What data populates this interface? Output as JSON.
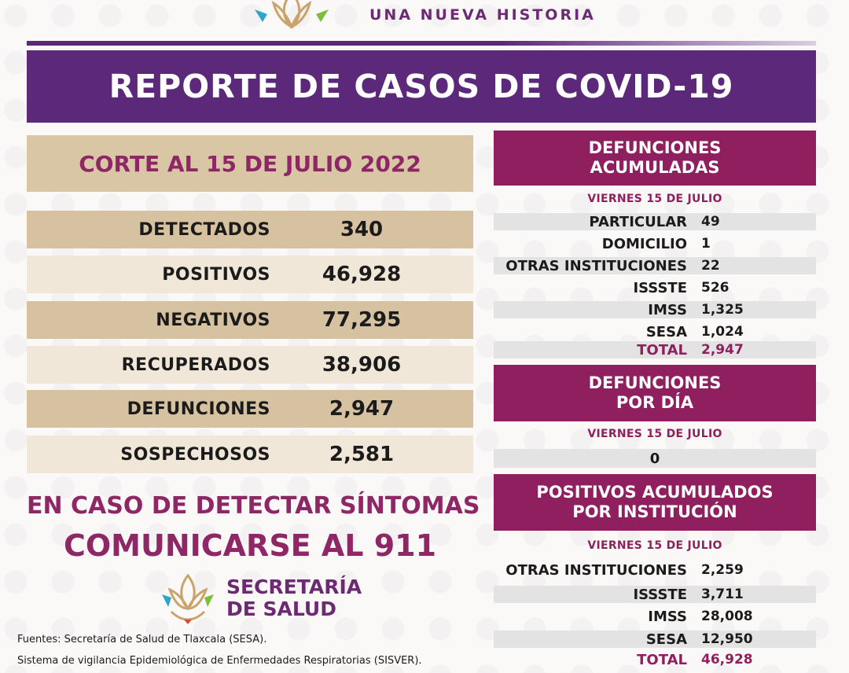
{
  "header": {
    "subtitle": "UNA NUEVA HISTORIA",
    "title": "REPORTE DE CASOS DE COVID-19"
  },
  "summary": {
    "corte": "CORTE AL 15 DE JULIO 2022",
    "rows": [
      {
        "label": "DETECTADOS",
        "value": "340"
      },
      {
        "label": "POSITIVOS",
        "value": "46,928"
      },
      {
        "label": "NEGATIVOS",
        "value": "77,295"
      },
      {
        "label": "RECUPERADOS",
        "value": "38,906"
      },
      {
        "label": "DEFUNCIONES",
        "value": "2,947"
      },
      {
        "label": "SOSPECHOSOS",
        "value": "2,581"
      }
    ]
  },
  "notice": {
    "line1": "EN CASO DE DETECTAR SÍNTOMAS",
    "line2": "COMUNICARSE AL 911"
  },
  "secretaria": {
    "line1": "SECRETARÍA",
    "line2": "DE SALUD"
  },
  "sources": {
    "line1": "Fuentes:  Secretaría de Salud de Tlaxcala (SESA).",
    "line2": "Sistema de vigilancia Epidemiológica de Enfermedades Respiratorias (SISVER)."
  },
  "defunciones_acumuladas": {
    "title1": "DEFUNCIONES",
    "title2": "ACUMULADAS",
    "date": "VIERNES 15 DE JULIO",
    "rows": [
      {
        "label": "PARTICULAR",
        "value": "49"
      },
      {
        "label": "DOMICILIO",
        "value": "1"
      },
      {
        "label": "OTRAS INSTITUCIONES",
        "value": "22"
      },
      {
        "label": "ISSSTE",
        "value": "526"
      },
      {
        "label": "IMSS",
        "value": "1,325"
      },
      {
        "label": "SESA",
        "value": "1,024"
      },
      {
        "label": "TOTAL",
        "value": "2,947"
      }
    ]
  },
  "defunciones_dia": {
    "title1": "DEFUNCIONES",
    "title2": "POR DÍA",
    "date": "VIERNES 15 DE JULIO",
    "value": "0"
  },
  "positivos_institucion": {
    "title1": "POSITIVOS ACUMULADOS",
    "title2": "POR INSTITUCIÓN",
    "date": "VIERNES 15 DE JULIO",
    "rows": [
      {
        "label": "OTRAS INSTITUCIONES",
        "value": "2,259"
      },
      {
        "label": "ISSSTE",
        "value": "3,711"
      },
      {
        "label": "IMSS",
        "value": "28,008"
      },
      {
        "label": "SESA",
        "value": "12,950"
      },
      {
        "label": "TOTAL",
        "value": "46,928"
      }
    ]
  },
  "colors": {
    "purple": "#5b287a",
    "magenta": "#8f1f5f",
    "tan": "#d6c2a0",
    "cream": "#f0e7d8"
  }
}
